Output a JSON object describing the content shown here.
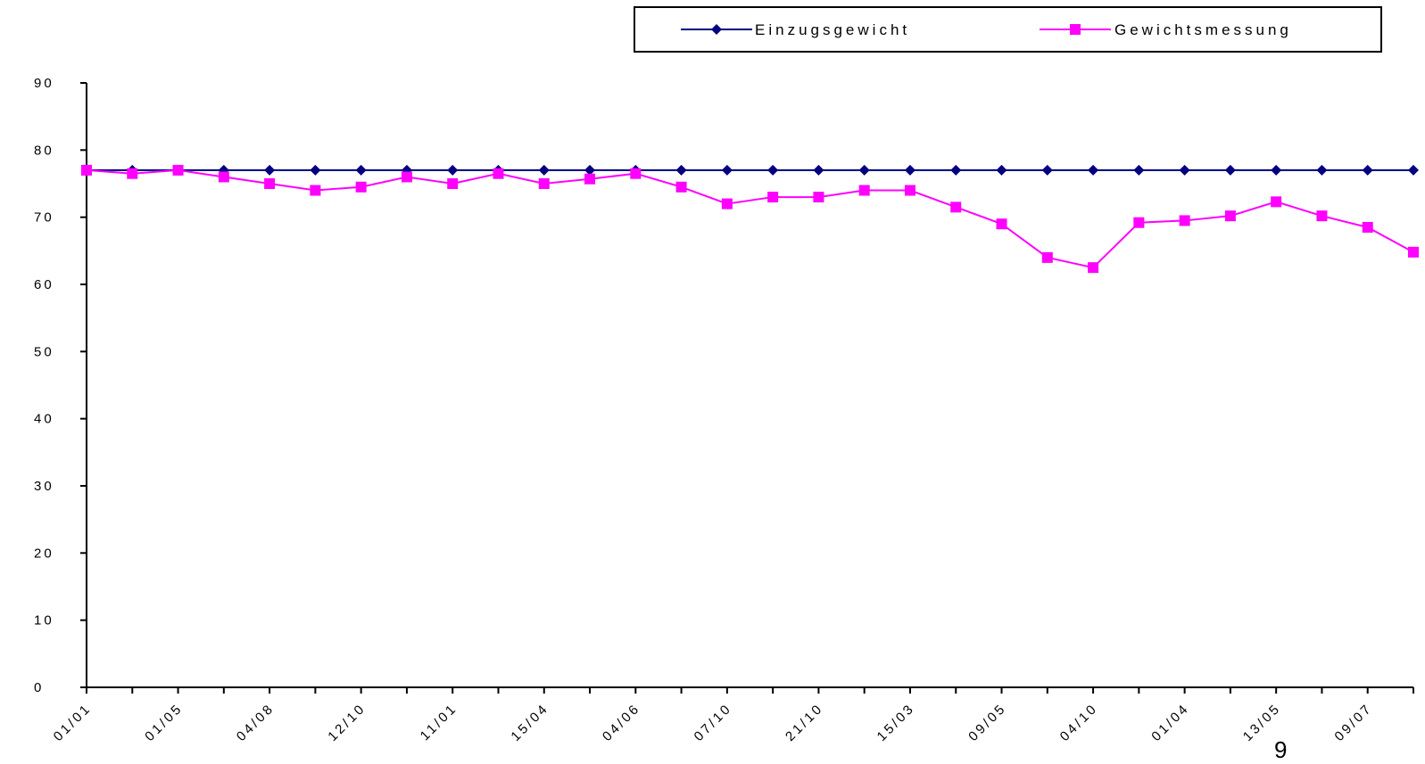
{
  "chart_data": {
    "type": "line",
    "x": [
      "01/01",
      "",
      "01/05",
      "",
      "04/08",
      "",
      "12/10",
      "",
      "11/01",
      "",
      "15/04",
      "",
      "04/06",
      "",
      "07/10",
      "",
      "21/10",
      "",
      "15/03",
      "",
      "09/05",
      "",
      "04/10",
      "",
      "01/04",
      "",
      "13/05",
      "",
      "09/07",
      ""
    ],
    "series": [
      {
        "name": "Einzugsgewicht",
        "color": "#000080",
        "marker": "diamond",
        "values": [
          77,
          77,
          77,
          77,
          77,
          77,
          77,
          77,
          77,
          77,
          77,
          77,
          77,
          77,
          77,
          77,
          77,
          77,
          77,
          77,
          77,
          77,
          77,
          77,
          77,
          77,
          77,
          77,
          77,
          77
        ]
      },
      {
        "name": "Gewichtsmessung",
        "color": "#ff00ff",
        "marker": "square",
        "values": [
          77,
          76.5,
          77,
          76,
          75,
          74,
          74.5,
          76,
          75,
          76.5,
          75,
          75.7,
          76.5,
          74.5,
          72,
          73,
          73,
          74,
          74,
          71.5,
          69,
          64,
          62.5,
          69.2,
          69.5,
          70.2,
          72.3,
          70.2,
          68.5,
          64.8
        ]
      }
    ],
    "yticks": [
      "0",
      "10",
      "20",
      "30",
      "40",
      "50",
      "60",
      "70",
      "80",
      "90"
    ],
    "ylim": [
      0,
      90
    ],
    "legend_position": "top-right",
    "grid": false
  },
  "page_number": "9"
}
